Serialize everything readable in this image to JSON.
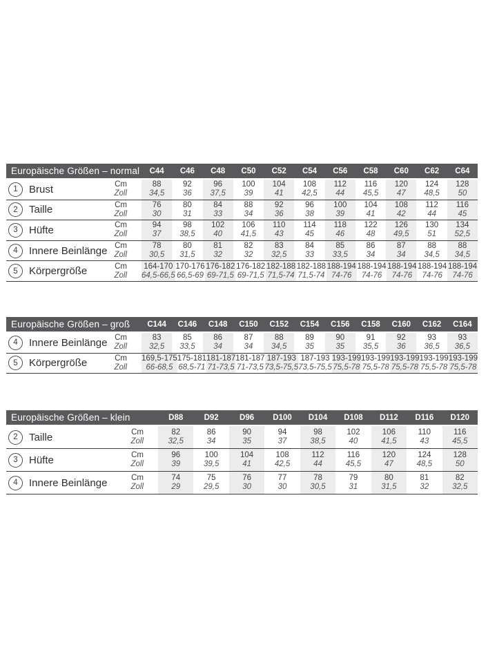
{
  "colors": {
    "header_bg": "#59595b",
    "header_text": "#ffffff",
    "stripe": "#ececec",
    "cm_text": "#3a3a3c",
    "zoll_text": "#525254",
    "separator": "#3a3a3c"
  },
  "unit_labels": {
    "cm": "Cm",
    "zoll": "Zoll"
  },
  "tables": [
    {
      "id": "normal",
      "title": "Europäische Größen – normal",
      "columns": [
        "C44",
        "C46",
        "C48",
        "C50",
        "C52",
        "C54",
        "C56",
        "C58",
        "C60",
        "C62",
        "C64"
      ],
      "rows": [
        {
          "num": "1",
          "label": "Brust",
          "cm": [
            "88",
            "92",
            "96",
            "100",
            "104",
            "108",
            "112",
            "116",
            "120",
            "124",
            "128"
          ],
          "zoll": [
            "34,5",
            "36",
            "37,5",
            "39",
            "41",
            "42,5",
            "44",
            "45,5",
            "47",
            "48,5",
            "50"
          ]
        },
        {
          "num": "2",
          "label": "Taille",
          "cm": [
            "76",
            "80",
            "84",
            "88",
            "92",
            "96",
            "100",
            "104",
            "108",
            "112",
            "116"
          ],
          "zoll": [
            "30",
            "31",
            "33",
            "34",
            "36",
            "38",
            "39",
            "41",
            "42",
            "44",
            "45"
          ]
        },
        {
          "num": "3",
          "label": "Hüfte",
          "cm": [
            "94",
            "98",
            "102",
            "106",
            "110",
            "114",
            "118",
            "122",
            "126",
            "130",
            "134"
          ],
          "zoll": [
            "37",
            "38,5",
            "40",
            "41,5",
            "43",
            "45",
            "46",
            "48",
            "49,5",
            "51",
            "52,5"
          ]
        },
        {
          "num": "4",
          "label": "Innere Beinlänge",
          "cm": [
            "78",
            "80",
            "81",
            "82",
            "83",
            "84",
            "85",
            "86",
            "87",
            "88",
            "88"
          ],
          "zoll": [
            "30,5",
            "31,5",
            "32",
            "32",
            "32,5",
            "33",
            "33,5",
            "34",
            "34",
            "34,5",
            "34,5"
          ]
        },
        {
          "num": "5",
          "label": "Körpergröße",
          "cm": [
            "164-170",
            "170-176",
            "176-182",
            "176-182",
            "182-188",
            "182-188",
            "188-194",
            "188-194",
            "188-194",
            "188-194",
            "188-194"
          ],
          "zoll": [
            "64,5-66,5",
            "66,5-69",
            "69-71,5",
            "69-71,5",
            "71,5-74",
            "71,5-74",
            "74-76",
            "74-76",
            "74-76",
            "74-76",
            "74-76"
          ]
        }
      ]
    },
    {
      "id": "gross",
      "title": "Europäische Größen – groß",
      "columns": [
        "C144",
        "C146",
        "C148",
        "C150",
        "C152",
        "C154",
        "C156",
        "C158",
        "C160",
        "C162",
        "C164"
      ],
      "rows": [
        {
          "num": "4",
          "label": "Innere Beinlänge",
          "cm": [
            "83",
            "85",
            "86",
            "87",
            "88",
            "89",
            "90",
            "91",
            "92",
            "93",
            "93"
          ],
          "zoll": [
            "32,5",
            "33,5",
            "34",
            "34",
            "34,5",
            "35",
            "35",
            "35,5",
            "36",
            "36,5",
            "36,5"
          ]
        },
        {
          "num": "5",
          "label": "Körpergröße",
          "cm": [
            "169,5-175",
            "175-181",
            "181-187",
            "181-187",
            "187-193",
            "187-193",
            "193-199",
            "193-199",
            "193-199",
            "193-199",
            "193-199"
          ],
          "zoll": [
            "66-68,5",
            "68,5-71",
            "71-73,5",
            "71-73,5",
            "73,5-75,5",
            "73,5-75,5",
            "75,5-78",
            "75,5-78",
            "75,5-78",
            "75,5-78",
            "75,5-78"
          ]
        }
      ]
    },
    {
      "id": "klein",
      "title": "Europäische Größen – klein",
      "columns": [
        "D88",
        "D92",
        "D96",
        "D100",
        "D104",
        "D108",
        "D112",
        "D116",
        "D120"
      ],
      "rows": [
        {
          "num": "2",
          "label": "Taille",
          "cm": [
            "82",
            "86",
            "90",
            "94",
            "98",
            "102",
            "106",
            "110",
            "116"
          ],
          "zoll": [
            "32,5",
            "34",
            "35",
            "37",
            "38,5",
            "40",
            "41,5",
            "43",
            "45,5"
          ]
        },
        {
          "num": "3",
          "label": "Hüfte",
          "cm": [
            "96",
            "100",
            "104",
            "108",
            "112",
            "116",
            "120",
            "124",
            "128"
          ],
          "zoll": [
            "39",
            "39,5",
            "41",
            "42,5",
            "44",
            "45,5",
            "47",
            "48,5",
            "50"
          ]
        },
        {
          "num": "4",
          "label": "Innere Beinlänge",
          "cm": [
            "74",
            "75",
            "76",
            "77",
            "78",
            "79",
            "80",
            "81",
            "82"
          ],
          "zoll": [
            "29",
            "29,5",
            "30",
            "30",
            "30,5",
            "31",
            "31,5",
            "32",
            "32,5"
          ]
        }
      ]
    }
  ]
}
